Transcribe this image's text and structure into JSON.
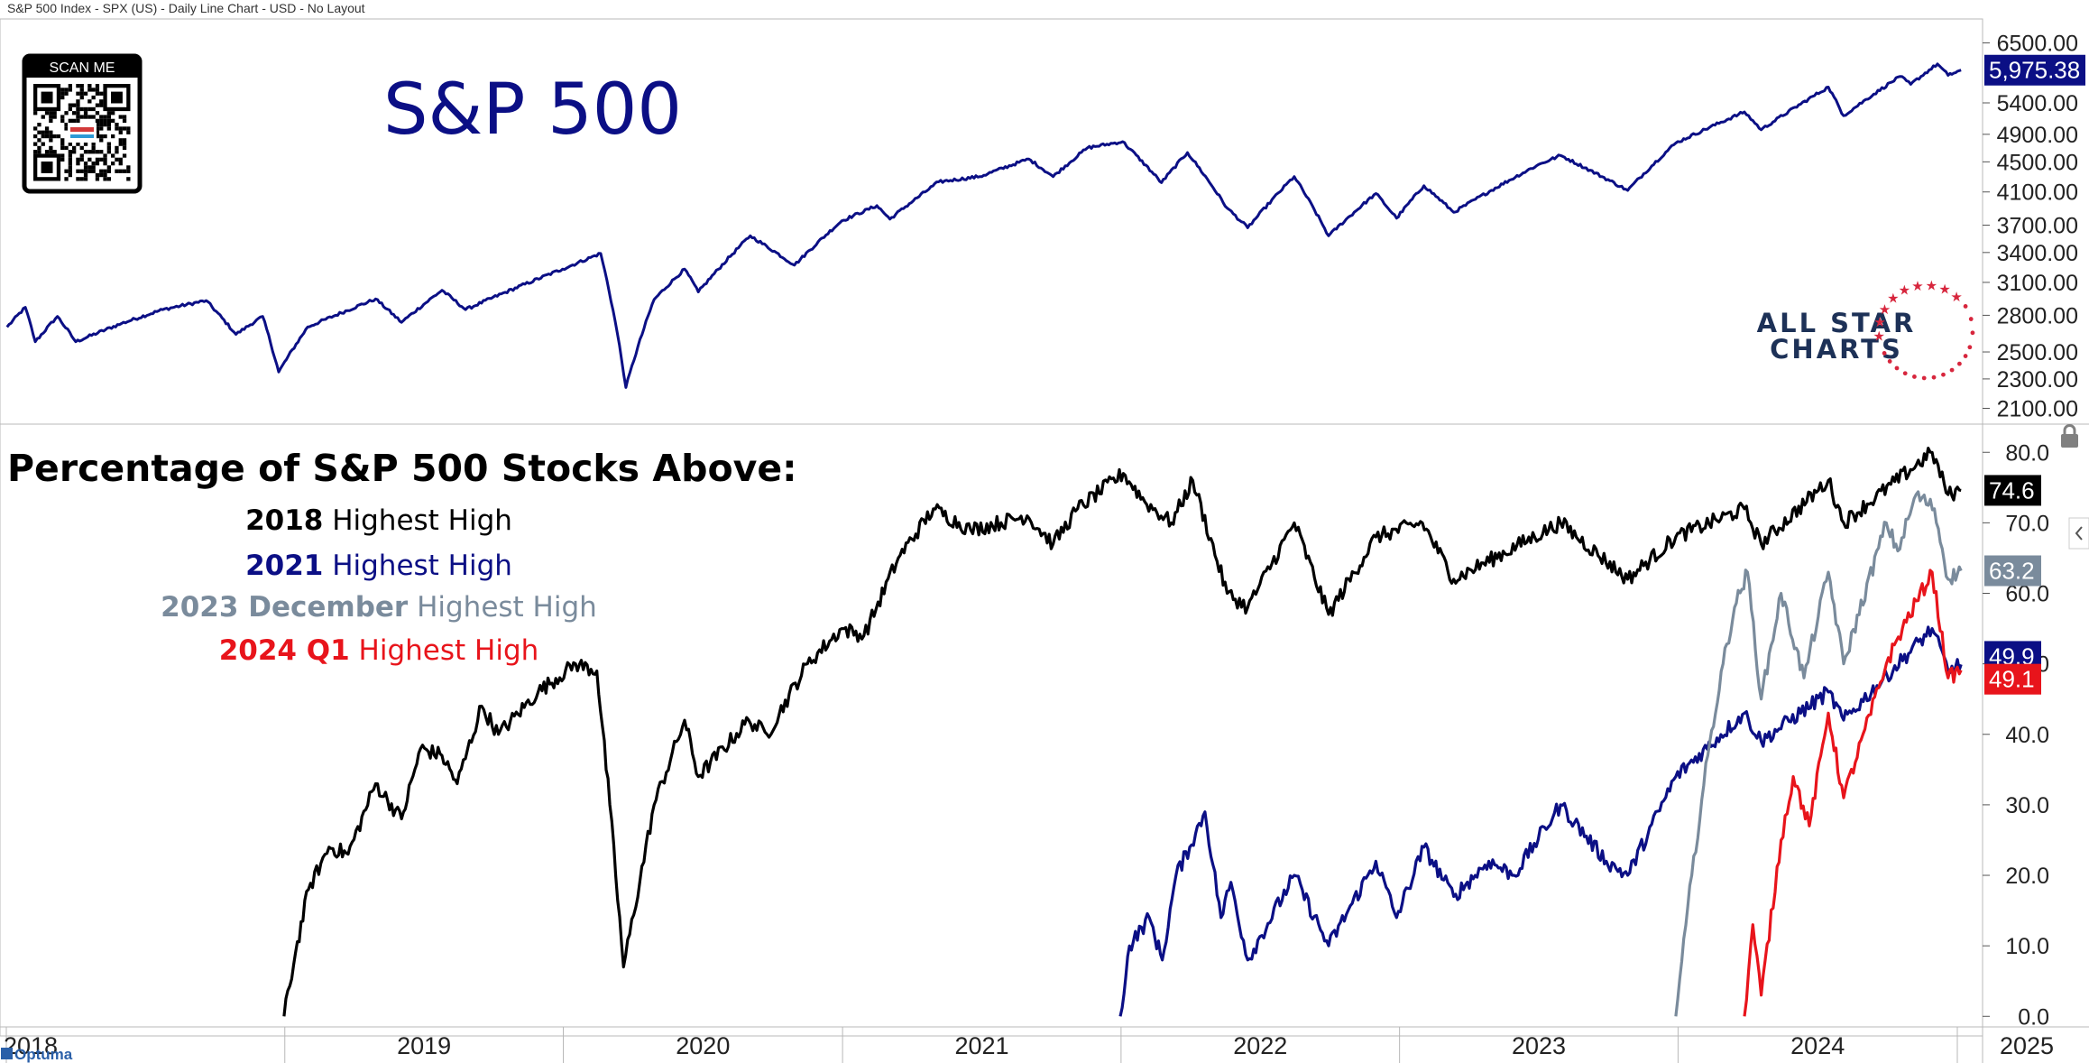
{
  "header": {
    "info": "S&P 500 Index - SPX (US) - Daily Line Chart - USD - No Layout"
  },
  "qr": {
    "label": "SCAN ME"
  },
  "brand": {
    "line1": "ALL STAR",
    "line2": "CHARTS"
  },
  "footer_brand": "Optuma",
  "colors": {
    "navy": "#0b0f85",
    "black": "#000000",
    "gray": "#7a8b9c",
    "red": "#e8141b"
  },
  "chart_data": [
    {
      "type": "line",
      "title": "S&P 500",
      "y_ticks": [
        2100,
        2300,
        2500,
        2800,
        3100,
        3400,
        3700,
        4100,
        4500,
        4900,
        5400,
        6500
      ],
      "y_tick_labels": [
        "2100.00",
        "2300.00",
        "2500.00",
        "2800.00",
        "3100.00",
        "3400.00",
        "3700.00",
        "4100.00",
        "4500.00",
        "4900.00",
        "5400.00",
        "6500.00"
      ],
      "ylim": [
        2000,
        7000
      ],
      "last_value_label": "5,975.38",
      "series": [
        {
          "color": "#0b0f85",
          "points": [
            [
              "2018-01-02",
              2700
            ],
            [
              "2018-01-26",
              2870
            ],
            [
              "2018-02-08",
              2580
            ],
            [
              "2018-03-09",
              2790
            ],
            [
              "2018-04-02",
              2580
            ],
            [
              "2018-06-01",
              2730
            ],
            [
              "2018-07-25",
              2850
            ],
            [
              "2018-09-20",
              2930
            ],
            [
              "2018-10-29",
              2640
            ],
            [
              "2018-12-03",
              2790
            ],
            [
              "2018-12-24",
              2350
            ],
            [
              "2019-01-31",
              2700
            ],
            [
              "2019-04-30",
              2945
            ],
            [
              "2019-06-03",
              2740
            ],
            [
              "2019-07-26",
              3025
            ],
            [
              "2019-08-26",
              2850
            ],
            [
              "2019-12-31",
              3230
            ],
            [
              "2020-02-19",
              3390
            ],
            [
              "2020-03-09",
              2750
            ],
            [
              "2020-03-23",
              2240
            ],
            [
              "2020-04-29",
              2940
            ],
            [
              "2020-06-08",
              3230
            ],
            [
              "2020-06-26",
              3010
            ],
            [
              "2020-09-02",
              3580
            ],
            [
              "2020-10-30",
              3270
            ],
            [
              "2020-12-31",
              3750
            ],
            [
              "2021-02-15",
              3930
            ],
            [
              "2021-03-04",
              3770
            ],
            [
              "2021-05-07",
              4230
            ],
            [
              "2021-06-30",
              4300
            ],
            [
              "2021-09-02",
              4540
            ],
            [
              "2021-10-04",
              4300
            ],
            [
              "2021-11-18",
              4700
            ],
            [
              "2022-01-03",
              4790
            ],
            [
              "2022-02-23",
              4220
            ],
            [
              "2022-03-29",
              4630
            ],
            [
              "2022-05-20",
              3900
            ],
            [
              "2022-06-16",
              3670
            ],
            [
              "2022-08-16",
              4300
            ],
            [
              "2022-09-30",
              3580
            ],
            [
              "2022-12-01",
              4080
            ],
            [
              "2022-12-28",
              3780
            ],
            [
              "2023-02-02",
              4180
            ],
            [
              "2023-03-13",
              3850
            ],
            [
              "2023-06-30",
              4450
            ],
            [
              "2023-07-31",
              4590
            ],
            [
              "2023-10-27",
              4120
            ],
            [
              "2023-12-29",
              4770
            ],
            [
              "2024-03-28",
              5250
            ],
            [
              "2024-04-19",
              4970
            ],
            [
              "2024-07-16",
              5670
            ],
            [
              "2024-08-05",
              5190
            ],
            [
              "2024-10-18",
              5860
            ],
            [
              "2024-11-01",
              5720
            ],
            [
              "2024-12-06",
              6090
            ],
            [
              "2024-12-20",
              5880
            ],
            [
              "2025-01-06",
              5975
            ]
          ]
        }
      ]
    },
    {
      "type": "line",
      "title": "Percentage of S&P 500 Stocks Above:",
      "y_ticks": [
        0,
        10,
        20,
        30,
        40,
        50,
        60,
        70,
        80
      ],
      "y_tick_labels": [
        "0.0",
        "10.0",
        "20.0",
        "30.0",
        "40.0",
        "50.0",
        "60.0",
        "70.0",
        "80.0"
      ],
      "ylim": [
        -1.5,
        84
      ],
      "x_ticks": [
        "2018",
        "2019",
        "2020",
        "2021",
        "2022",
        "2023",
        "2024",
        "2025"
      ],
      "legend": [
        {
          "bold": "2018",
          "rest": "Highest High",
          "color": "#000000"
        },
        {
          "bold": "2021",
          "rest": "Highest High",
          "color": "#0b0f85"
        },
        {
          "bold": "2023 December",
          "rest": "Highest High",
          "color": "#7a8b9c"
        },
        {
          "bold": "2024 Q1",
          "rest": "Highest High",
          "color": "#e8141b"
        }
      ],
      "series": [
        {
          "name": "2018 Highest High",
          "color": "#000000",
          "last_label": "74.6",
          "points": [
            [
              "2018-12-31",
              0
            ],
            [
              "2019-01-15",
              9
            ],
            [
              "2019-02-01",
              18
            ],
            [
              "2019-02-28",
              24
            ],
            [
              "2019-03-25",
              23
            ],
            [
              "2019-04-30",
              33
            ],
            [
              "2019-06-03",
              28
            ],
            [
              "2019-06-28",
              38
            ],
            [
              "2019-07-26",
              37
            ],
            [
              "2019-08-15",
              33
            ],
            [
              "2019-09-16",
              44
            ],
            [
              "2019-10-08",
              40
            ],
            [
              "2019-11-29",
              46
            ],
            [
              "2020-01-17",
              50
            ],
            [
              "2020-02-14",
              49
            ],
            [
              "2020-03-02",
              30
            ],
            [
              "2020-03-20",
              7
            ],
            [
              "2020-04-29",
              30
            ],
            [
              "2020-06-08",
              42
            ],
            [
              "2020-06-26",
              34
            ],
            [
              "2020-08-31",
              42
            ],
            [
              "2020-09-24",
              40
            ],
            [
              "2020-11-16",
              50
            ],
            [
              "2020-12-31",
              55
            ],
            [
              "2021-01-29",
              54
            ],
            [
              "2021-03-15",
              65
            ],
            [
              "2021-04-30",
              72
            ],
            [
              "2021-06-18",
              69
            ],
            [
              "2021-08-31",
              71
            ],
            [
              "2021-10-04",
              67
            ],
            [
              "2021-11-05",
              72
            ],
            [
              "2022-01-04",
              77
            ],
            [
              "2022-02-01",
              73
            ],
            [
              "2022-03-08",
              70
            ],
            [
              "2022-04-05",
              76
            ],
            [
              "2022-05-20",
              60
            ],
            [
              "2022-06-16",
              58
            ],
            [
              "2022-08-16",
              70
            ],
            [
              "2022-09-30",
              57
            ],
            [
              "2022-12-01",
              68
            ],
            [
              "2023-01-31",
              70
            ],
            [
              "2023-03-13",
              62
            ],
            [
              "2023-07-31",
              70
            ],
            [
              "2023-10-27",
              62
            ],
            [
              "2023-12-29",
              68
            ],
            [
              "2024-03-28",
              72
            ],
            [
              "2024-04-19",
              67
            ],
            [
              "2024-07-16",
              76
            ],
            [
              "2024-08-05",
              70
            ],
            [
              "2024-11-29",
              80
            ],
            [
              "2024-12-20",
              74
            ],
            [
              "2025-01-06",
              74.6
            ]
          ]
        },
        {
          "name": "2021 Highest High",
          "color": "#0b0f85",
          "last_label": "49.9",
          "points": [
            [
              "2021-12-31",
              0
            ],
            [
              "2022-01-12",
              10
            ],
            [
              "2022-02-07",
              14
            ],
            [
              "2022-02-24",
              8
            ],
            [
              "2022-03-14",
              20
            ],
            [
              "2022-04-01",
              24
            ],
            [
              "2022-04-21",
              29
            ],
            [
              "2022-05-12",
              14
            ],
            [
              "2022-05-25",
              19
            ],
            [
              "2022-06-16",
              8
            ],
            [
              "2022-08-16",
              20
            ],
            [
              "2022-09-30",
              10
            ],
            [
              "2022-12-01",
              22
            ],
            [
              "2022-12-28",
              14
            ],
            [
              "2023-02-02",
              24
            ],
            [
              "2023-03-13",
              17
            ],
            [
              "2023-04-28",
              22
            ],
            [
              "2023-05-31",
              20
            ],
            [
              "2023-07-31",
              30
            ],
            [
              "2023-09-29",
              22
            ],
            [
              "2023-10-27",
              20
            ],
            [
              "2023-12-29",
              34
            ],
            [
              "2024-03-28",
              43
            ],
            [
              "2024-04-19",
              39
            ],
            [
              "2024-07-16",
              46
            ],
            [
              "2024-08-05",
              42
            ],
            [
              "2024-11-29",
              55
            ],
            [
              "2024-12-20",
              49
            ],
            [
              "2025-01-06",
              49.9
            ]
          ]
        },
        {
          "name": "2023 December Highest High",
          "color": "#7a8b9c",
          "last_label": "63.2",
          "points": [
            [
              "2023-12-29",
              0
            ],
            [
              "2024-01-19",
              20
            ],
            [
              "2024-02-09",
              37
            ],
            [
              "2024-02-29",
              50
            ],
            [
              "2024-03-15",
              58
            ],
            [
              "2024-04-01",
              63
            ],
            [
              "2024-04-19",
              45
            ],
            [
              "2024-05-15",
              60
            ],
            [
              "2024-06-14",
              48
            ],
            [
              "2024-07-16",
              63
            ],
            [
              "2024-08-05",
              50
            ],
            [
              "2024-09-30",
              70
            ],
            [
              "2024-10-15",
              66
            ],
            [
              "2024-11-08",
              74
            ],
            [
              "2024-12-02",
              72
            ],
            [
              "2024-12-20",
              62
            ],
            [
              "2025-01-06",
              63.2
            ]
          ]
        },
        {
          "name": "2024 Q1 Highest High",
          "color": "#e8141b",
          "last_label": "49.1",
          "points": [
            [
              "2024-03-28",
              0
            ],
            [
              "2024-04-08",
              13
            ],
            [
              "2024-04-19",
              3
            ],
            [
              "2024-05-15",
              25
            ],
            [
              "2024-05-31",
              34
            ],
            [
              "2024-06-21",
              27
            ],
            [
              "2024-07-16",
              43
            ],
            [
              "2024-08-05",
              31
            ],
            [
              "2024-09-30",
              50
            ],
            [
              "2024-10-21",
              55
            ],
            [
              "2024-11-29",
              63
            ],
            [
              "2024-12-20",
              48
            ],
            [
              "2025-01-06",
              49.1
            ]
          ]
        }
      ]
    }
  ]
}
